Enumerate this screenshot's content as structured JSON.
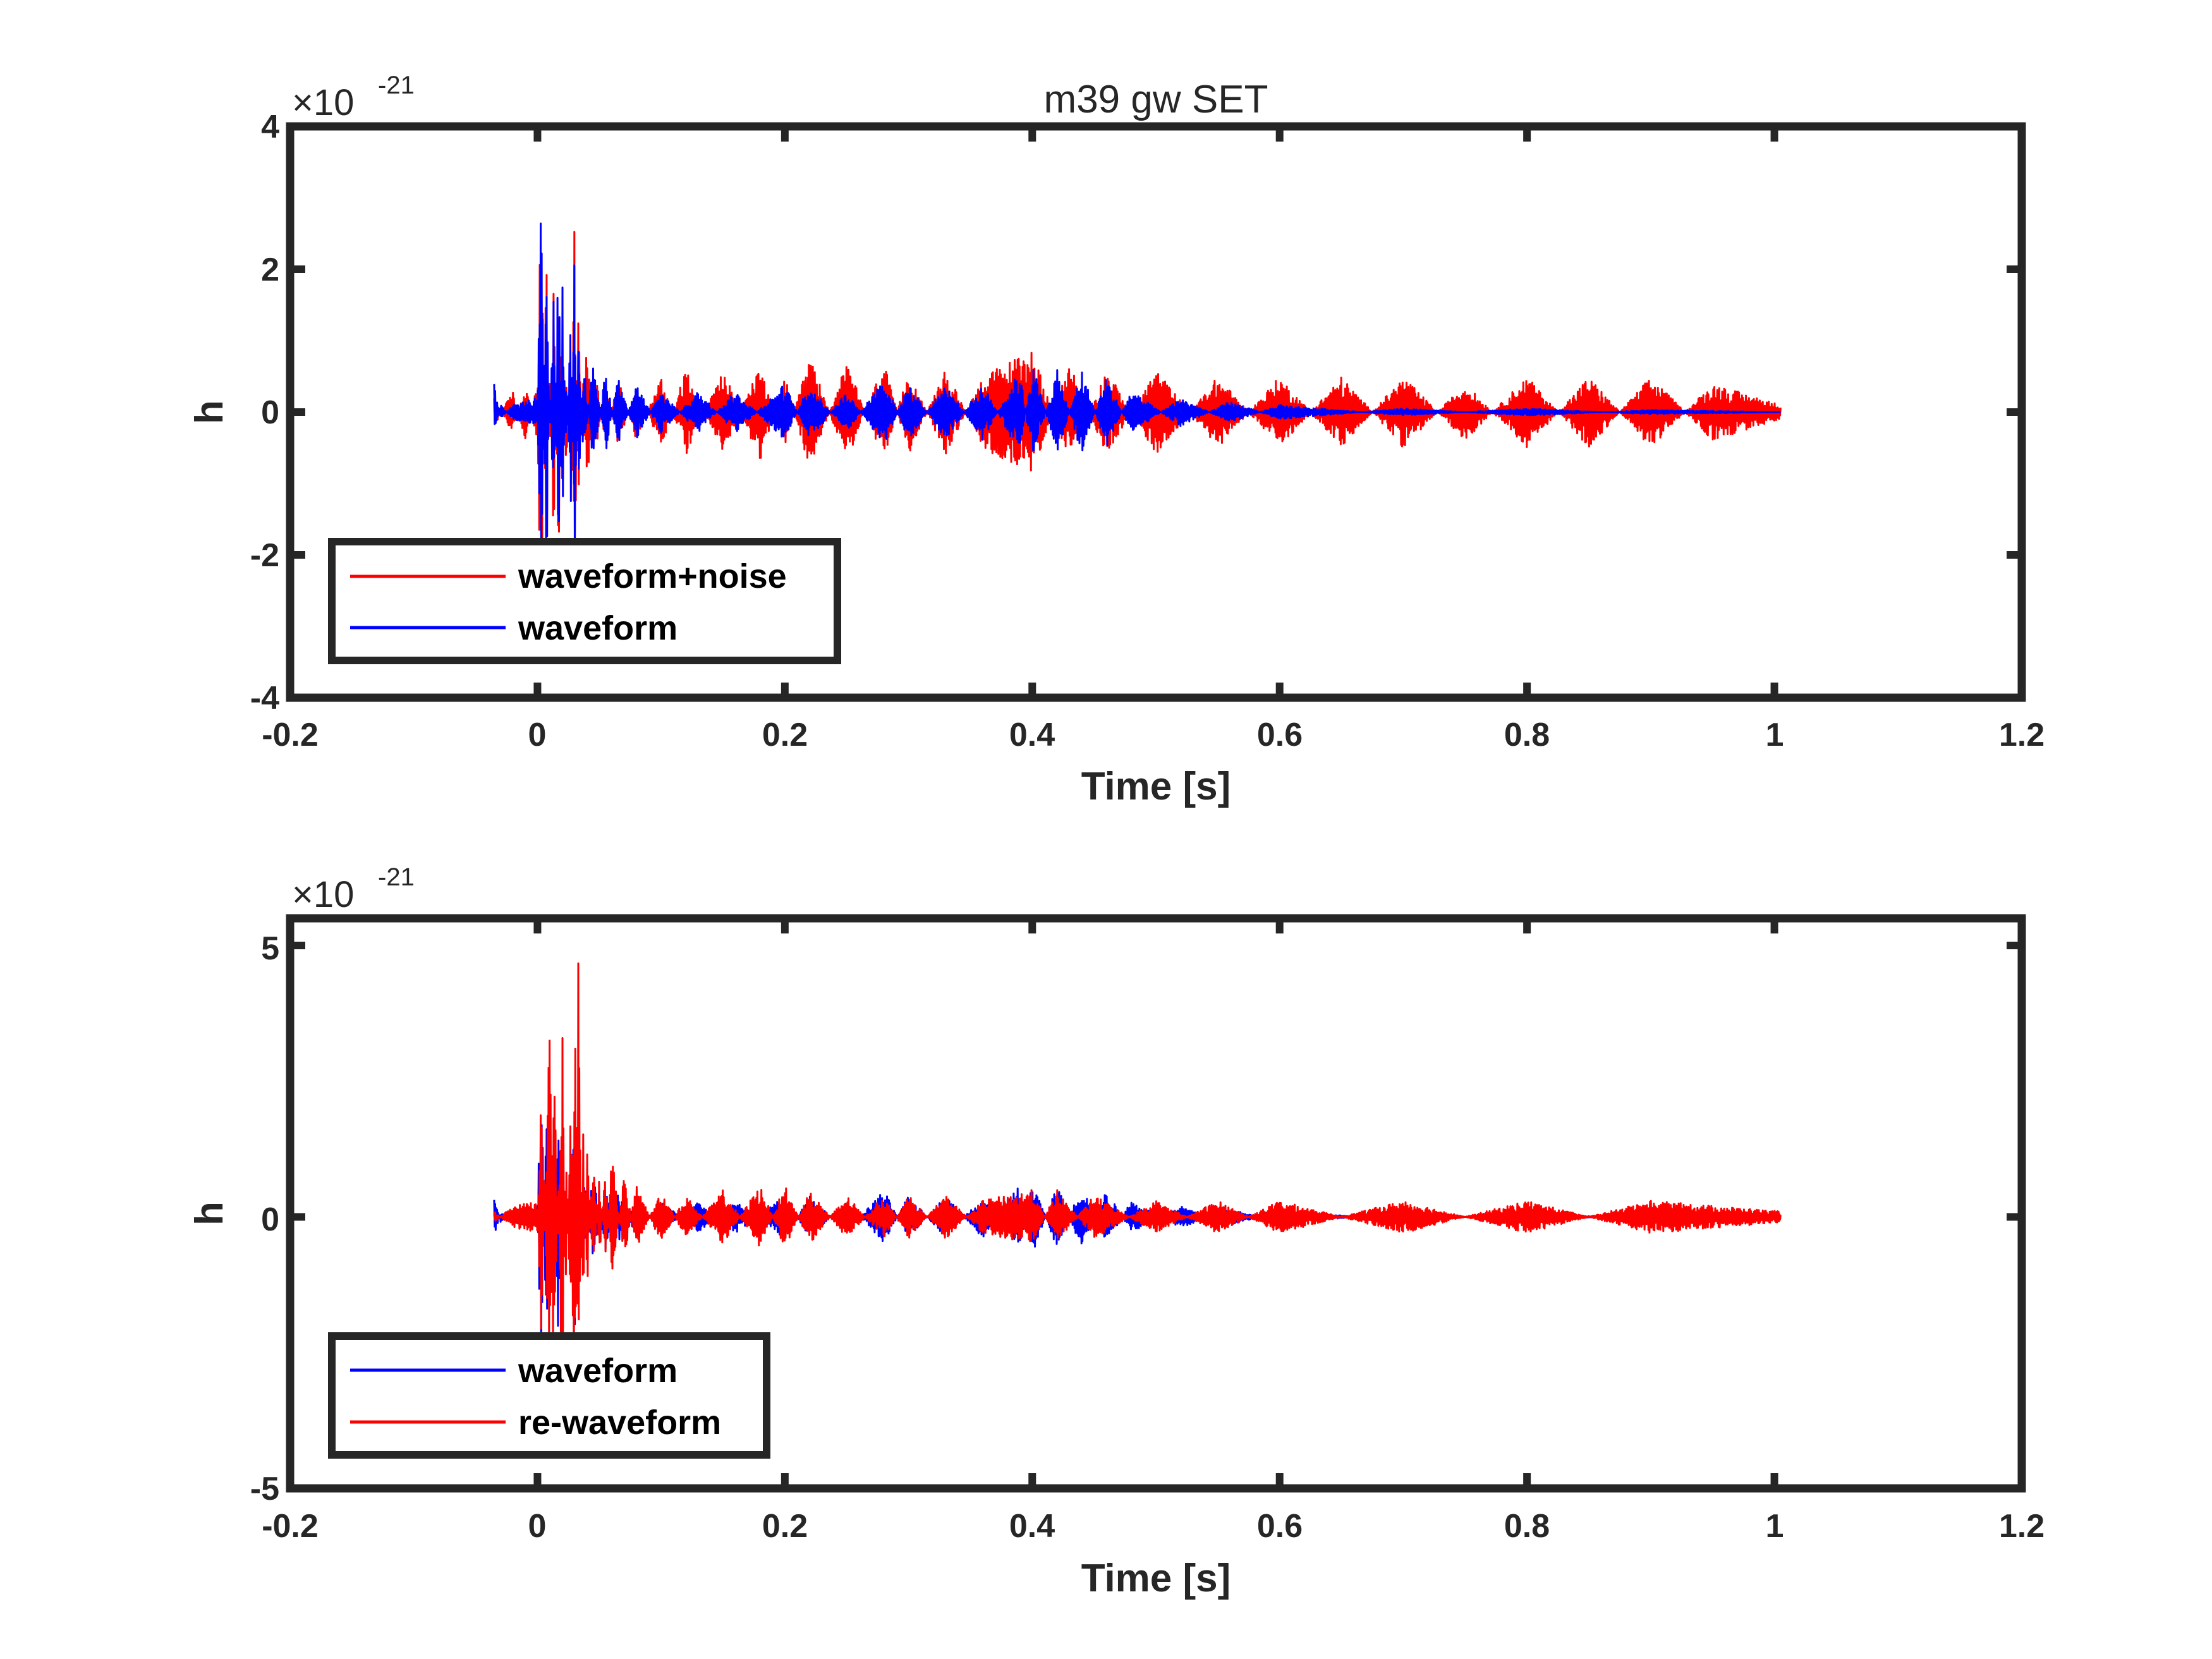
{
  "chart_data": [
    {
      "type": "line",
      "title": "m39 gw SET",
      "xlabel": "Time [s]",
      "ylabel": "h",
      "y_exponent_base": "×10",
      "y_exponent_power": "-21",
      "xlim": [
        -0.2,
        1.2
      ],
      "ylim": [
        -4,
        4
      ],
      "x_ticks": [
        "-0.2",
        "0",
        "0.2",
        "0.4",
        "0.6",
        "0.8",
        "1",
        "1.2"
      ],
      "y_ticks": [
        "-4",
        "-2",
        "0",
        "2",
        "4"
      ],
      "legend_position": "bottom-left",
      "signal_time_range": [
        -0.035,
        1.005
      ],
      "series": [
        {
          "name": "waveform+noise",
          "color": "#ff0000",
          "x": [
            -0.035,
            -0.02,
            -0.01,
            0,
            0.003,
            0.007,
            0.01,
            0.013,
            0.017,
            0.02,
            0.023,
            0.027,
            0.03,
            0.033,
            0.037,
            0.04,
            0.047,
            0.055,
            0.065,
            0.08,
            0.1,
            0.12,
            0.15,
            0.18,
            0.2,
            0.22,
            0.25,
            0.28,
            0.3,
            0.33,
            0.36,
            0.4,
            0.43,
            0.46,
            0.5,
            0.55,
            0.6,
            0.65,
            0.7,
            0.75,
            0.8,
            0.85,
            0.9,
            0.95,
            1.005
          ],
          "y": [
            -0.2,
            0.3,
            -0.4,
            0.4,
            3.2,
            -2.5,
            0.8,
            -1.9,
            2.2,
            -1.6,
            0.9,
            -1.0,
            2.9,
            -1.3,
            0.6,
            -1.1,
            0.6,
            -0.5,
            0.5,
            -0.4,
            0.5,
            -0.6,
            0.6,
            -0.7,
            0.5,
            -0.8,
            0.7,
            -0.7,
            0.6,
            -0.6,
            0.5,
            0.9,
            -0.7,
            0.6,
            -0.6,
            0.5,
            -0.5,
            0.5,
            -0.5,
            0.4,
            -0.5,
            0.5,
            -0.5,
            0.4,
            0.1
          ]
        },
        {
          "name": "waveform",
          "color": "#0000ff",
          "x": [
            -0.035,
            -0.03,
            -0.02,
            0,
            0.003,
            0.007,
            0.01,
            0.013,
            0.017,
            0.02,
            0.023,
            0.027,
            0.03,
            0.033,
            0.037,
            0.045,
            0.055,
            0.065,
            0.08,
            0.1,
            0.13,
            0.16,
            0.2,
            0.22,
            0.25,
            0.28,
            0.3,
            0.33,
            0.36,
            0.39,
            0.4,
            0.42,
            0.44,
            0.46,
            0.48,
            0.52,
            0.56,
            0.6,
            0.7,
            0.8,
            0.9,
            1.005
          ],
          "y": [
            0.4,
            -0.1,
            0.1,
            0.2,
            3.1,
            -2.7,
            0.5,
            -1.9,
            2.6,
            -2.0,
            0.6,
            -1.4,
            2.8,
            -1.5,
            0.8,
            -0.8,
            0.6,
            -0.5,
            0.4,
            -0.3,
            0.3,
            -0.3,
            0.4,
            -0.4,
            0.3,
            -0.5,
            0.4,
            -0.4,
            0.4,
            -0.6,
            0.7,
            -0.6,
            0.6,
            -0.5,
            0.3,
            -0.2,
            0.15,
            -0.1,
            0.05,
            -0.05,
            0.03,
            0.0
          ]
        }
      ]
    },
    {
      "type": "line",
      "xlabel": "Time [s]",
      "ylabel": "h",
      "y_exponent_base": "×10",
      "y_exponent_power": "-21",
      "xlim": [
        -0.2,
        1.2
      ],
      "ylim": [
        -5,
        5.5
      ],
      "x_ticks": [
        "-0.2",
        "0",
        "0.2",
        "0.4",
        "0.6",
        "0.8",
        "1",
        "1.2"
      ],
      "y_ticks": [
        "-5",
        "0",
        "5"
      ],
      "legend_position": "bottom-left",
      "signal_time_range": [
        -0.035,
        1.005
      ],
      "series": [
        {
          "name": "waveform",
          "color": "#0000ff",
          "x": [
            -0.035,
            -0.03,
            -0.02,
            0,
            0.003,
            0.007,
            0.01,
            0.013,
            0.017,
            0.02,
            0.023,
            0.027,
            0.03,
            0.033,
            0.037,
            0.045,
            0.055,
            0.065,
            0.08,
            0.1,
            0.13,
            0.16,
            0.2,
            0.22,
            0.25,
            0.28,
            0.3,
            0.33,
            0.36,
            0.39,
            0.4,
            0.42,
            0.44,
            0.46,
            0.48,
            0.52,
            0.56,
            0.6,
            0.7,
            0.8,
            0.9,
            1.005
          ],
          "y": [
            0.4,
            -0.1,
            0.1,
            0.2,
            3.1,
            -2.7,
            0.5,
            -1.9,
            2.6,
            -2.0,
            0.6,
            -1.4,
            2.8,
            -1.5,
            0.8,
            -0.8,
            0.6,
            -0.5,
            0.4,
            -0.3,
            0.3,
            -0.3,
            0.4,
            -0.4,
            0.3,
            -0.5,
            0.4,
            -0.4,
            0.4,
            -0.6,
            0.7,
            -0.6,
            0.6,
            -0.5,
            0.3,
            -0.2,
            0.15,
            -0.1,
            0.05,
            -0.05,
            0.03,
            0.0
          ]
        },
        {
          "name": "re-waveform",
          "color": "#ff0000",
          "x": [
            -0.035,
            -0.02,
            0,
            0.003,
            0.007,
            0.01,
            0.013,
            0.017,
            0.02,
            0.023,
            0.027,
            0.03,
            0.033,
            0.037,
            0.04,
            0.045,
            0.05,
            0.055,
            0.06,
            0.07,
            0.08,
            0.1,
            0.12,
            0.15,
            0.18,
            0.2,
            0.22,
            0.25,
            0.28,
            0.3,
            0.33,
            0.36,
            0.4,
            0.42,
            0.45,
            0.5,
            0.55,
            0.6,
            0.7,
            0.8,
            0.9,
            1.005
          ],
          "y": [
            -0.1,
            0.2,
            0.3,
            -2.5,
            1.0,
            4.1,
            -3.5,
            0.9,
            -5.2,
            1.5,
            -2.3,
            5.5,
            -4.8,
            2.0,
            -1.5,
            1.3,
            -0.8,
            0.9,
            -1.2,
            0.8,
            -0.6,
            0.5,
            -0.4,
            0.5,
            -0.6,
            0.6,
            -0.5,
            0.4,
            -0.4,
            0.4,
            -0.4,
            0.3,
            0.5,
            -0.5,
            0.4,
            -0.3,
            0.3,
            -0.3,
            0.3,
            -0.3,
            0.3,
            0.1
          ]
        }
      ]
    }
  ]
}
